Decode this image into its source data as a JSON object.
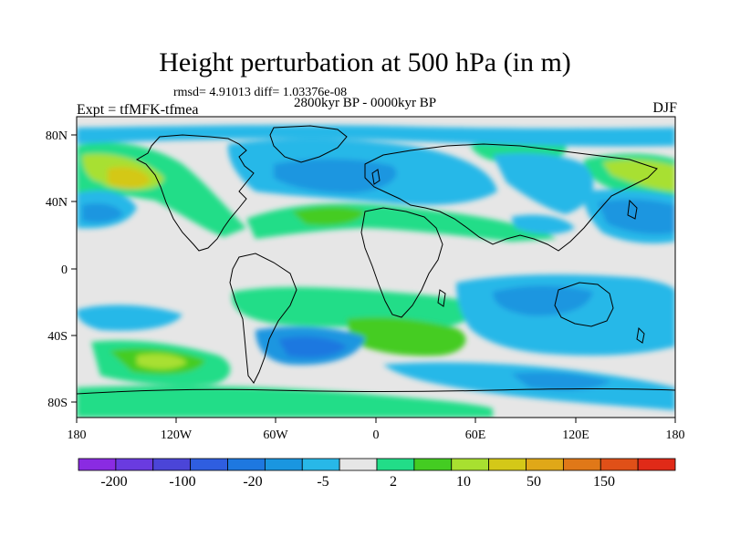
{
  "title": "Height perturbation at 500 hPa (in m)",
  "stats": "rmsd= 4.91013  diff= 1.03376e-08",
  "period": "2800kyr BP - 0000kyr BP",
  "experiment": "Expt = tfMFK-tfmea",
  "season": "DJF",
  "axes": {
    "lat_ticks": [
      "80N",
      "40N",
      "0",
      "40S",
      "80S"
    ],
    "lon_ticks": [
      "180",
      "120W",
      "60W",
      "0",
      "60E",
      "120E",
      "180"
    ]
  },
  "colorbar": {
    "labels": [
      "-200",
      "-100",
      "-20",
      "-5",
      "2",
      "10",
      "50",
      "150"
    ],
    "colors": [
      "#8a2be2",
      "#6a3be0",
      "#4b45d8",
      "#2f5ee0",
      "#1e78e0",
      "#1a96e0",
      "#28b8e8",
      "#e6e6e6",
      "#22dd88",
      "#44cc22",
      "#a8e030",
      "#d4c818",
      "#e0a818",
      "#e07818",
      "#e05018",
      "#e02a18"
    ]
  },
  "colors": {
    "land_outline": "#000000",
    "neutral": "#e6e6e6"
  }
}
